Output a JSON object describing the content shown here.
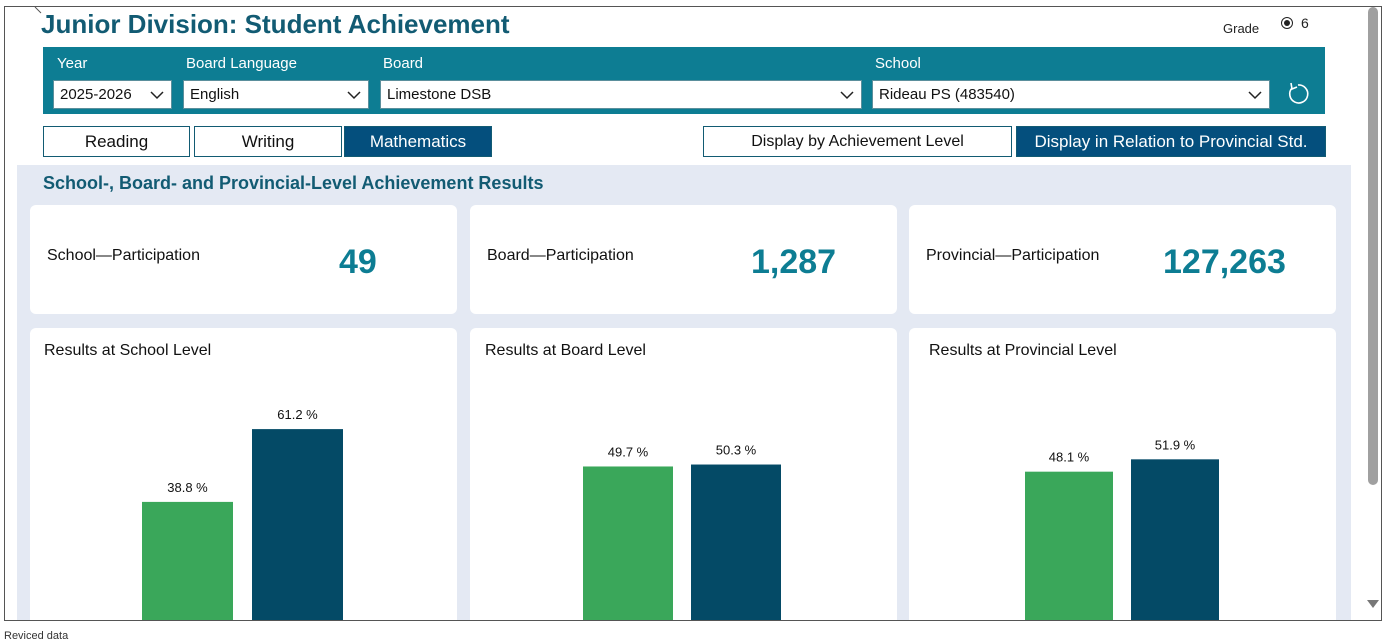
{
  "header": {
    "title": "Junior Division: Student Achievement",
    "grade_label": "Grade",
    "grade_value": "6"
  },
  "filters": {
    "year": {
      "label": "Year",
      "value": "2025-2026"
    },
    "board_language": {
      "label": "Board Language",
      "value": "English"
    },
    "board": {
      "label": "Board",
      "value": "Limestone DSB"
    },
    "school": {
      "label": "School",
      "value": "Rideau PS (483540)"
    }
  },
  "subject_tabs": [
    {
      "label": "Reading",
      "active": false
    },
    {
      "label": "Writing",
      "active": false
    },
    {
      "label": "Mathematics",
      "active": true
    }
  ],
  "display_options": [
    {
      "label": "Display by Achievement Level",
      "active": false
    },
    {
      "label": "Display in Relation to Provincial Std.",
      "active": true
    }
  ],
  "section_title": "School-, Board- and Provincial-Level Achievement Results",
  "participation": [
    {
      "label": "School—Participation",
      "value": "49"
    },
    {
      "label": "Board—Participation",
      "value": "1,287"
    },
    {
      "label": "Provincial—Participation",
      "value": "127,263"
    }
  ],
  "results_titles": [
    "Results at School Level",
    "Results at Board Level",
    "Results at Provincial Level"
  ],
  "colors": {
    "accent": "#0d7d93",
    "title": "#125b73",
    "active_tab": "#044f7d",
    "bar_below": "#3aa75a",
    "bar_at_above": "#044a66",
    "panel_bg": "#e4e9f3"
  },
  "chart_data": [
    {
      "type": "bar",
      "title": "Results at School Level",
      "categories": [
        "",
        ""
      ],
      "values": [
        38.8,
        61.2
      ],
      "data_labels": [
        "38.8 %",
        "61.2 %"
      ],
      "ylim": [
        0,
        100
      ]
    },
    {
      "type": "bar",
      "title": "Results at Board Level",
      "categories": [
        "",
        ""
      ],
      "values": [
        49.7,
        50.3
      ],
      "data_labels": [
        "49.7 %",
        "50.3 %"
      ],
      "ylim": [
        0,
        100
      ]
    },
    {
      "type": "bar",
      "title": "Results at Provincial Level",
      "categories": [
        "",
        ""
      ],
      "values": [
        48.1,
        51.9
      ],
      "data_labels": [
        "48.1 %",
        "51.9 %"
      ],
      "ylim": [
        0,
        100
      ]
    }
  ],
  "footer_text": "Reviced data"
}
